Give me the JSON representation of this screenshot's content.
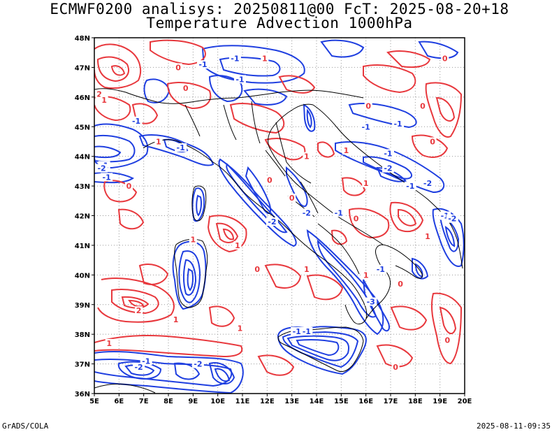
{
  "title": {
    "line1": "ECMWF0200 analisys: 20250811@00 FcT: 2025-08-20+18",
    "line2": "Temperature Advection 1000hPa"
  },
  "footer": {
    "left": "GrADS/COLA",
    "right": "2025-08-11-09:35"
  },
  "axes": {
    "lon_labels": [
      "5E",
      "6E",
      "7E",
      "8E",
      "9E",
      "10E",
      "11E",
      "12E",
      "13E",
      "14E",
      "15E",
      "16E",
      "17E",
      "18E",
      "19E",
      "20E"
    ],
    "lat_labels": [
      "36N",
      "37N",
      "38N",
      "39N",
      "40N",
      "41N",
      "42N",
      "43N",
      "44N",
      "45N",
      "46N",
      "47N",
      "48N"
    ],
    "lon_range": [
      5,
      20
    ],
    "lat_range": [
      36,
      48
    ],
    "grid": "dotted"
  },
  "colors": {
    "positive_contour": "#e8383d",
    "negative_contour": "#1f3fe0",
    "coastline": "#000000",
    "grid": "#999999"
  },
  "contour_labels": {
    "positive": [
      {
        "text": "1",
        "lon": 11.9,
        "lat": 47.3
      },
      {
        "text": "0",
        "lon": 8.4,
        "lat": 47.0
      },
      {
        "text": "2",
        "lon": 5.2,
        "lat": 46.1
      },
      {
        "text": "1",
        "lon": 5.4,
        "lat": 45.9
      },
      {
        "text": "0",
        "lon": 8.7,
        "lat": 46.3
      },
      {
        "text": "0",
        "lon": 16.1,
        "lat": 45.7
      },
      {
        "text": "0",
        "lon": 18.3,
        "lat": 45.7
      },
      {
        "text": "0",
        "lon": 19.2,
        "lat": 47.3
      },
      {
        "text": "1",
        "lon": 7.6,
        "lat": 44.5
      },
      {
        "text": "0",
        "lon": 6.4,
        "lat": 43.0
      },
      {
        "text": "1",
        "lon": 13.6,
        "lat": 44.0
      },
      {
        "text": "1",
        "lon": 15.2,
        "lat": 44.2
      },
      {
        "text": "1",
        "lon": 16.0,
        "lat": 43.1
      },
      {
        "text": "0",
        "lon": 18.7,
        "lat": 44.5
      },
      {
        "text": "0",
        "lon": 12.1,
        "lat": 43.2
      },
      {
        "text": "0",
        "lon": 13.0,
        "lat": 42.6
      },
      {
        "text": "0",
        "lon": 15.6,
        "lat": 41.9
      },
      {
        "text": "1",
        "lon": 16.0,
        "lat": 40.0
      },
      {
        "text": "1",
        "lon": 9.0,
        "lat": 41.2
      },
      {
        "text": "1",
        "lon": 10.8,
        "lat": 41.0
      },
      {
        "text": "0",
        "lon": 11.6,
        "lat": 40.2
      },
      {
        "text": "1",
        "lon": 13.6,
        "lat": 40.2
      },
      {
        "text": "1",
        "lon": 18.5,
        "lat": 41.3
      },
      {
        "text": "0",
        "lon": 17.4,
        "lat": 39.7
      },
      {
        "text": "2",
        "lon": 6.8,
        "lat": 38.8
      },
      {
        "text": "1",
        "lon": 10.9,
        "lat": 38.2
      },
      {
        "text": "1",
        "lon": 5.6,
        "lat": 37.7
      },
      {
        "text": "1",
        "lon": 8.3,
        "lat": 38.5
      },
      {
        "text": "0",
        "lon": 17.2,
        "lat": 36.9
      },
      {
        "text": "0",
        "lon": 19.3,
        "lat": 37.8
      }
    ],
    "negative": [
      {
        "text": "-1",
        "lon": 9.4,
        "lat": 47.1
      },
      {
        "text": "-1",
        "lon": 10.7,
        "lat": 47.3
      },
      {
        "text": "-1",
        "lon": 10.9,
        "lat": 46.6
      },
      {
        "text": "-1",
        "lon": 6.7,
        "lat": 45.2
      },
      {
        "text": "-1",
        "lon": 8.5,
        "lat": 44.3
      },
      {
        "text": "-1",
        "lon": 5.4,
        "lat": 43.7
      },
      {
        "text": "-1",
        "lon": 5.5,
        "lat": 43.3
      },
      {
        "text": "-2",
        "lon": 5.3,
        "lat": 43.6
      },
      {
        "text": "-1",
        "lon": 16.0,
        "lat": 45.0
      },
      {
        "text": "-1",
        "lon": 17.3,
        "lat": 45.1
      },
      {
        "text": "-1",
        "lon": 16.9,
        "lat": 44.1
      },
      {
        "text": "-2",
        "lon": 16.9,
        "lat": 43.6
      },
      {
        "text": "-2",
        "lon": 18.5,
        "lat": 43.1
      },
      {
        "text": "-1",
        "lon": 17.8,
        "lat": 43.0
      },
      {
        "text": "-1",
        "lon": 19.2,
        "lat": 42.0
      },
      {
        "text": "-2",
        "lon": 19.5,
        "lat": 41.9
      },
      {
        "text": "-2",
        "lon": 12.2,
        "lat": 41.8
      },
      {
        "text": "-1",
        "lon": 14.9,
        "lat": 42.1
      },
      {
        "text": "-2",
        "lon": 13.6,
        "lat": 42.1
      },
      {
        "text": "-1",
        "lon": 16.6,
        "lat": 40.2
      },
      {
        "text": "-3",
        "lon": 16.2,
        "lat": 39.1
      },
      {
        "text": "-1",
        "lon": 13.6,
        "lat": 38.1
      },
      {
        "text": "-1",
        "lon": 13.2,
        "lat": 38.1
      },
      {
        "text": "-2",
        "lon": 9.2,
        "lat": 37.0
      },
      {
        "text": "-1",
        "lon": 7.1,
        "lat": 37.1
      },
      {
        "text": "-2",
        "lon": 6.8,
        "lat": 36.9
      }
    ]
  }
}
